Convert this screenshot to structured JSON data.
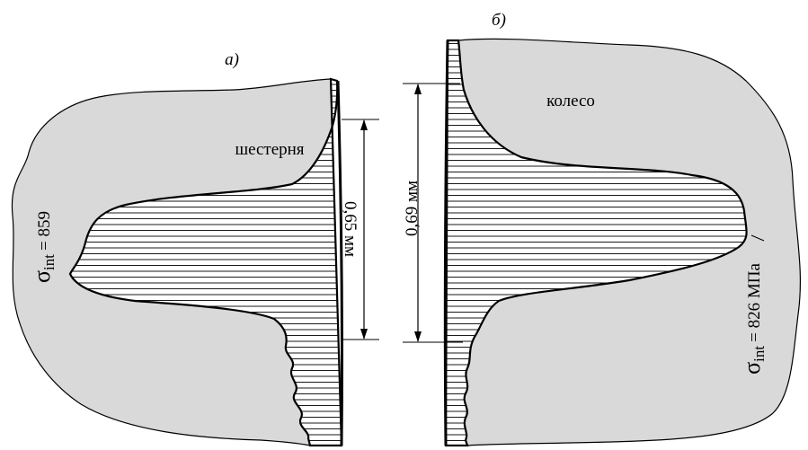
{
  "panels": [
    {
      "label": "а)",
      "part": "шестерня",
      "dimension": "0,65 мм",
      "stress": {
        "symbol": "σ",
        "subscript": "int",
        "value": "= 859"
      }
    },
    {
      "label": "б)",
      "part": "колесо",
      "dimension": "0,69 мм",
      "stress": {
        "symbol": "σ",
        "subscript": "int",
        "value": "= 826 МПа"
      }
    }
  ]
}
